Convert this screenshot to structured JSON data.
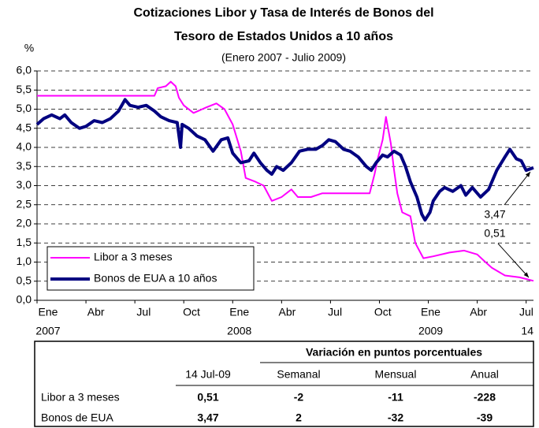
{
  "chart_data": {
    "type": "line",
    "title": [
      "Cotizaciones Libor y Tasa de Interés de Bonos del",
      "Tesoro de Estados Unidos  a 10 años"
    ],
    "subtitle": "(Enero 2007 - Julio 2009)",
    "ylabel": "%",
    "xlim": [
      0,
      30.45
    ],
    "ylim": [
      0,
      6
    ],
    "yticks": [
      {
        "value": 0,
        "label": "0,0"
      },
      {
        "value": 0.5,
        "label": "0,5"
      },
      {
        "value": 1,
        "label": "1,0"
      },
      {
        "value": 1.5,
        "label": "1,5"
      },
      {
        "value": 2,
        "label": "2,0"
      },
      {
        "value": 2.5,
        "label": "2,5"
      },
      {
        "value": 3,
        "label": "3,0"
      },
      {
        "value": 3.5,
        "label": "3,5"
      },
      {
        "value": 4,
        "label": "4,0"
      },
      {
        "value": 4.5,
        "label": "4,5"
      },
      {
        "value": 5,
        "label": "5,0"
      },
      {
        "value": 5.5,
        "label": "5,5"
      },
      {
        "value": 6,
        "label": "6,0"
      }
    ],
    "xticks": [
      {
        "value": 0,
        "label": "Ene"
      },
      {
        "value": 3,
        "label": "Abr"
      },
      {
        "value": 6,
        "label": "Jul"
      },
      {
        "value": 9,
        "label": "Oct"
      },
      {
        "value": 12,
        "label": "Ene"
      },
      {
        "value": 15,
        "label": "Abr"
      },
      {
        "value": 18,
        "label": "Jul"
      },
      {
        "value": 21,
        "label": "Oct"
      },
      {
        "value": 24,
        "label": "Ene"
      },
      {
        "value": 27,
        "label": "Abr"
      },
      {
        "value": 30,
        "label": "Jul"
      }
    ],
    "x_sublabels": [
      {
        "value": 0,
        "label": "2007"
      },
      {
        "value": 12,
        "label": "2008"
      },
      {
        "value": 24,
        "label": "2009"
      },
      {
        "value": 30.45,
        "label": "14"
      }
    ],
    "grid": true,
    "legend": "lower left",
    "series": [
      {
        "name": "Libor a 3 meses",
        "color": "#ff00ff",
        "x": [
          0,
          7.2,
          7.4,
          7.9,
          8.2,
          8.5,
          8.7,
          9.0,
          9.6,
          10.4,
          11.0,
          11.5,
          12.0,
          12.5,
          12.8,
          13.4,
          13.9,
          14.4,
          15.0,
          15.6,
          16.0,
          16.8,
          17.5,
          20.4,
          20.7,
          20.9,
          21.2,
          21.4,
          21.7,
          21.9,
          22.1,
          22.4,
          22.9,
          23.2,
          23.7,
          24.3,
          25.3,
          26.2,
          27.0,
          27.5,
          27.9,
          28.7,
          29.6,
          30.45
        ],
        "values": [
          5.35,
          5.35,
          5.55,
          5.6,
          5.72,
          5.6,
          5.3,
          5.1,
          4.9,
          5.05,
          5.15,
          5.0,
          4.6,
          3.9,
          3.2,
          3.1,
          3.0,
          2.6,
          2.7,
          2.9,
          2.7,
          2.7,
          2.8,
          2.8,
          3.3,
          3.7,
          4.2,
          4.8,
          4.1,
          3.4,
          2.8,
          2.3,
          2.2,
          1.5,
          1.1,
          1.15,
          1.25,
          1.3,
          1.2,
          1.0,
          0.85,
          0.65,
          0.6,
          0.51
        ]
      },
      {
        "name": "Bonos de EUA a 10 años",
        "color": "#000080",
        "x": [
          0,
          0.4,
          0.9,
          1.4,
          1.7,
          2.1,
          2.6,
          3.0,
          3.5,
          4.0,
          4.5,
          5.0,
          5.4,
          5.7,
          6.2,
          6.7,
          7.2,
          7.6,
          8.1,
          8.6,
          8.8,
          8.9,
          9.3,
          9.8,
          10.3,
          10.8,
          11.3,
          11.7,
          12.0,
          12.5,
          13.0,
          13.3,
          13.7,
          14.1,
          14.4,
          14.7,
          15.1,
          15.6,
          16.1,
          16.6,
          17.1,
          17.5,
          17.9,
          18.3,
          18.8,
          19.2,
          19.7,
          20.2,
          20.5,
          20.8,
          21.2,
          21.5,
          21.9,
          22.3,
          22.6,
          22.9,
          23.3,
          23.6,
          23.8,
          24.1,
          24.3,
          24.7,
          25.0,
          25.5,
          26.0,
          26.3,
          26.7,
          27.2,
          27.7,
          28.2,
          28.7,
          29.0,
          29.4,
          29.7,
          30.0,
          30.45
        ],
        "values": [
          4.6,
          4.75,
          4.85,
          4.75,
          4.85,
          4.65,
          4.5,
          4.55,
          4.7,
          4.65,
          4.75,
          4.95,
          5.25,
          5.1,
          5.05,
          5.1,
          4.95,
          4.8,
          4.7,
          4.65,
          4.0,
          4.6,
          4.5,
          4.3,
          4.2,
          3.9,
          4.2,
          4.25,
          3.85,
          3.6,
          3.65,
          3.85,
          3.6,
          3.4,
          3.3,
          3.5,
          3.4,
          3.6,
          3.9,
          3.95,
          3.95,
          4.05,
          4.2,
          4.15,
          3.95,
          3.9,
          3.75,
          3.5,
          3.4,
          3.6,
          3.8,
          3.75,
          3.9,
          3.8,
          3.5,
          3.1,
          2.7,
          2.25,
          2.1,
          2.3,
          2.6,
          2.85,
          2.95,
          2.85,
          3.0,
          2.75,
          2.95,
          2.7,
          2.9,
          3.4,
          3.75,
          3.95,
          3.7,
          3.65,
          3.4,
          3.47
        ]
      }
    ],
    "annotations": [
      "3,47",
      "0,51"
    ]
  },
  "table": {
    "group_header": "Variación en puntos porcentuales",
    "columns": [
      "14 Jul-09",
      "Semanal",
      "Mensual",
      "Anual"
    ],
    "rows": [
      [
        "Libor a 3 meses",
        "0,51",
        "-2",
        "-11",
        "-228"
      ],
      [
        "Bonos de EUA",
        "3,47",
        "2",
        "-32",
        "-39"
      ]
    ]
  }
}
